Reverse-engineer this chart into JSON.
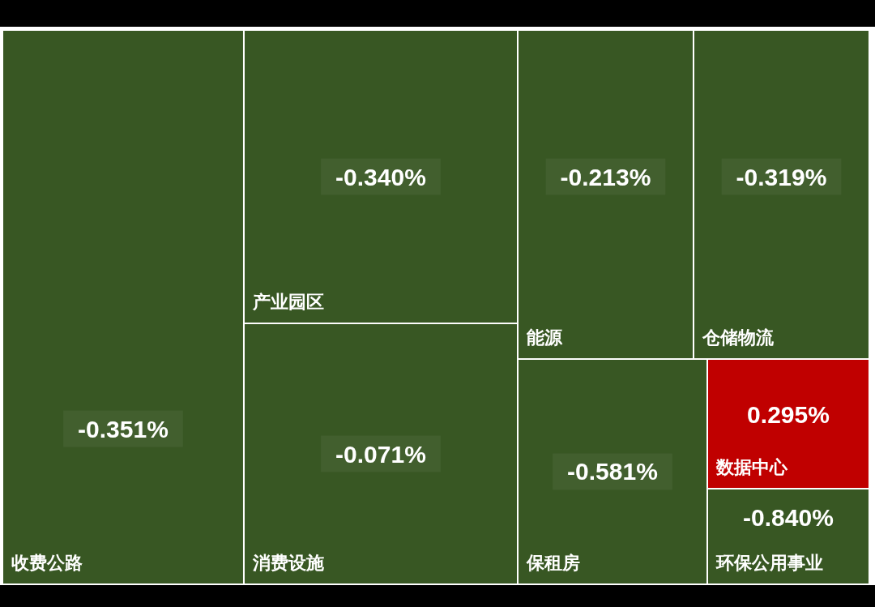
{
  "chart_data": {
    "type": "other",
    "categories": [
      "收费公路",
      "产业园区",
      "消费设施",
      "能源",
      "仓储物流",
      "保租房",
      "数据中心",
      "环保公用事业"
    ],
    "values": [
      -0.351,
      -0.34,
      -0.071,
      -0.213,
      -0.319,
      -0.581,
      0.295,
      -0.84
    ],
    "colors": [
      "#385723",
      "#385723",
      "#385723",
      "#385723",
      "#385723",
      "#385723",
      "#c00000",
      "#385723"
    ],
    "value_labels": [
      "-0.351%",
      "-0.340%",
      "-0.071%",
      "-0.213%",
      "-0.319%",
      "-0.581%",
      "0.295%",
      "-0.840%"
    ]
  }
}
